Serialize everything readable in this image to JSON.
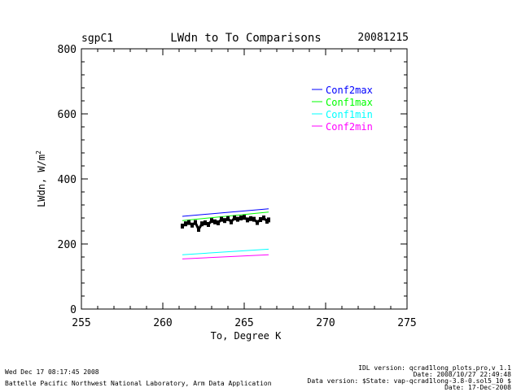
{
  "header": {
    "site": "sgpC1",
    "title": "LWdn to To Comparisons",
    "date": "20081215"
  },
  "colors": {
    "Conf2max": "#0000ff",
    "Conf1max": "#00ff00",
    "Conf1min": "#00ffff",
    "Conf2min": "#ff00ff",
    "observed": "#000000"
  },
  "chart_data": {
    "type": "scatter",
    "title": "LWdn to To Comparisons",
    "xlabel": "To, Degree K",
    "ylabel": "LWdn, W/m",
    "ylabel_sup": "2",
    "xlim": [
      255,
      275
    ],
    "ylim": [
      0,
      800
    ],
    "xticks": [
      "255",
      "260",
      "265",
      "270",
      "275"
    ],
    "yticks": [
      "0",
      "200",
      "400",
      "600",
      "800"
    ],
    "legend_position": "upper-right",
    "series": [
      {
        "name": "Conf2max",
        "type": "line",
        "x": [
          261.2,
          266.5
        ],
        "y": [
          285,
          308
        ]
      },
      {
        "name": "Conf1max",
        "type": "line",
        "x": [
          261.2,
          266.5
        ],
        "y": [
          272,
          298
        ]
      },
      {
        "name": "Conf1min",
        "type": "line",
        "x": [
          261.2,
          266.5
        ],
        "y": [
          167,
          184
        ]
      },
      {
        "name": "Conf2min",
        "type": "line",
        "x": [
          261.2,
          266.5
        ],
        "y": [
          154,
          167
        ]
      },
      {
        "type": "scatter",
        "x": [
          261.2,
          261.4,
          261.6,
          261.8,
          262.0,
          262.2,
          262.4,
          262.6,
          262.8,
          263.0,
          263.2,
          263.4,
          263.6,
          263.8,
          264.0,
          264.2,
          264.4,
          264.6,
          264.8,
          265.0,
          265.2,
          265.4,
          265.6,
          265.8,
          266.0,
          266.2,
          266.4,
          266.5
        ],
        "y": [
          255,
          262,
          266,
          258,
          266,
          245,
          262,
          265,
          260,
          272,
          268,
          265,
          276,
          272,
          278,
          268,
          280,
          276,
          280,
          282,
          274,
          278,
          276,
          266,
          275,
          280,
          270,
          274
        ]
      }
    ]
  },
  "footer": {
    "left_line1": "Wed Dec 17 08:17:45 2008",
    "left_line2": "Battelle Pacific Northwest National Laboratory, Arm Data Application",
    "right_line1": "IDL version: qcrad1long_plots.pro,v 1.1",
    "right_line2": "Date: 2008/10/27 22:49:48",
    "right_line3": "Data version: $State: vap-qcrad1long-3.8-0.sol5_10 $",
    "right_line4": "Date: 17-Dec-2008"
  }
}
